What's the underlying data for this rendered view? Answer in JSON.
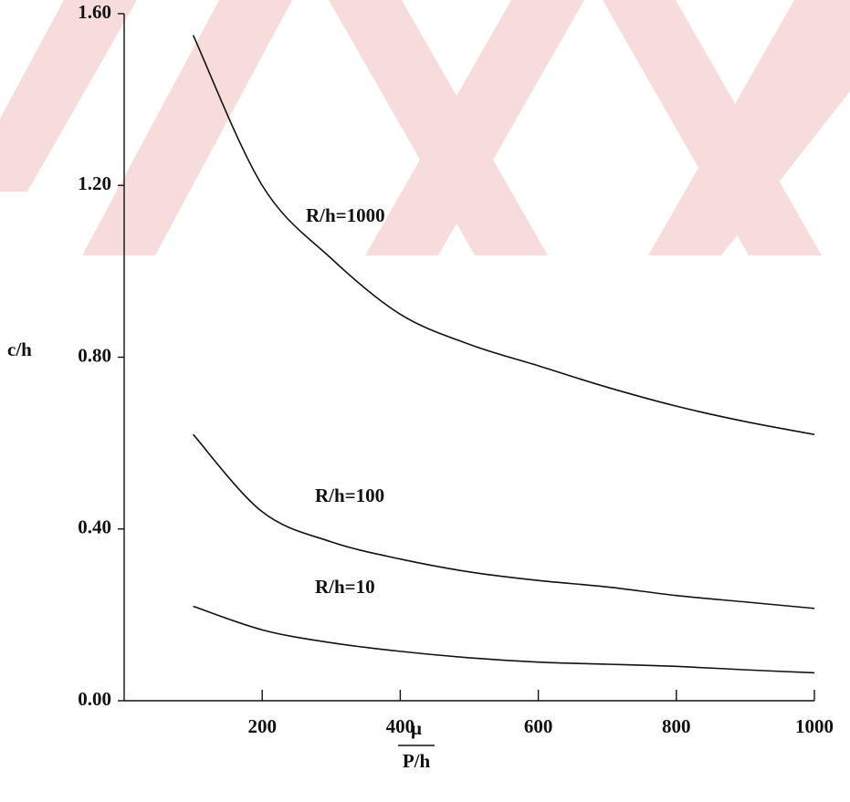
{
  "chart_data": {
    "type": "line",
    "xlabel": {
      "numerator": "μ",
      "denominator": "P/h"
    },
    "ylabel": "c/h",
    "x": [
      100,
      200,
      300,
      400,
      500,
      600,
      700,
      800,
      900,
      1000
    ],
    "series": [
      {
        "name": "R/h=1000",
        "color": "#111111",
        "values": [
          1.55,
          1.2,
          1.03,
          0.9,
          0.83,
          0.78,
          0.73,
          0.686,
          0.65,
          0.62
        ]
      },
      {
        "name": "R/h=100",
        "color": "#111111",
        "values": [
          0.62,
          0.44,
          0.37,
          0.33,
          0.3,
          0.28,
          0.265,
          0.245,
          0.23,
          0.215
        ]
      },
      {
        "name": "R/h=10",
        "color": "#111111",
        "values": [
          0.22,
          0.165,
          0.135,
          0.115,
          0.1,
          0.09,
          0.085,
          0.08,
          0.072,
          0.065
        ]
      }
    ],
    "xlim": [
      0,
      1000
    ],
    "ylim": [
      0,
      1.6
    ],
    "xticks": [
      200,
      400,
      600,
      800,
      1000
    ],
    "yticks": [
      {
        "value": 0,
        "label": "0.00"
      },
      {
        "value": 0.4,
        "label": "0.40"
      },
      {
        "value": 0.8,
        "label": "0.80"
      },
      {
        "value": 1.2,
        "label": "1.20"
      },
      {
        "value": 1.6,
        "label": "1.60"
      }
    ]
  }
}
